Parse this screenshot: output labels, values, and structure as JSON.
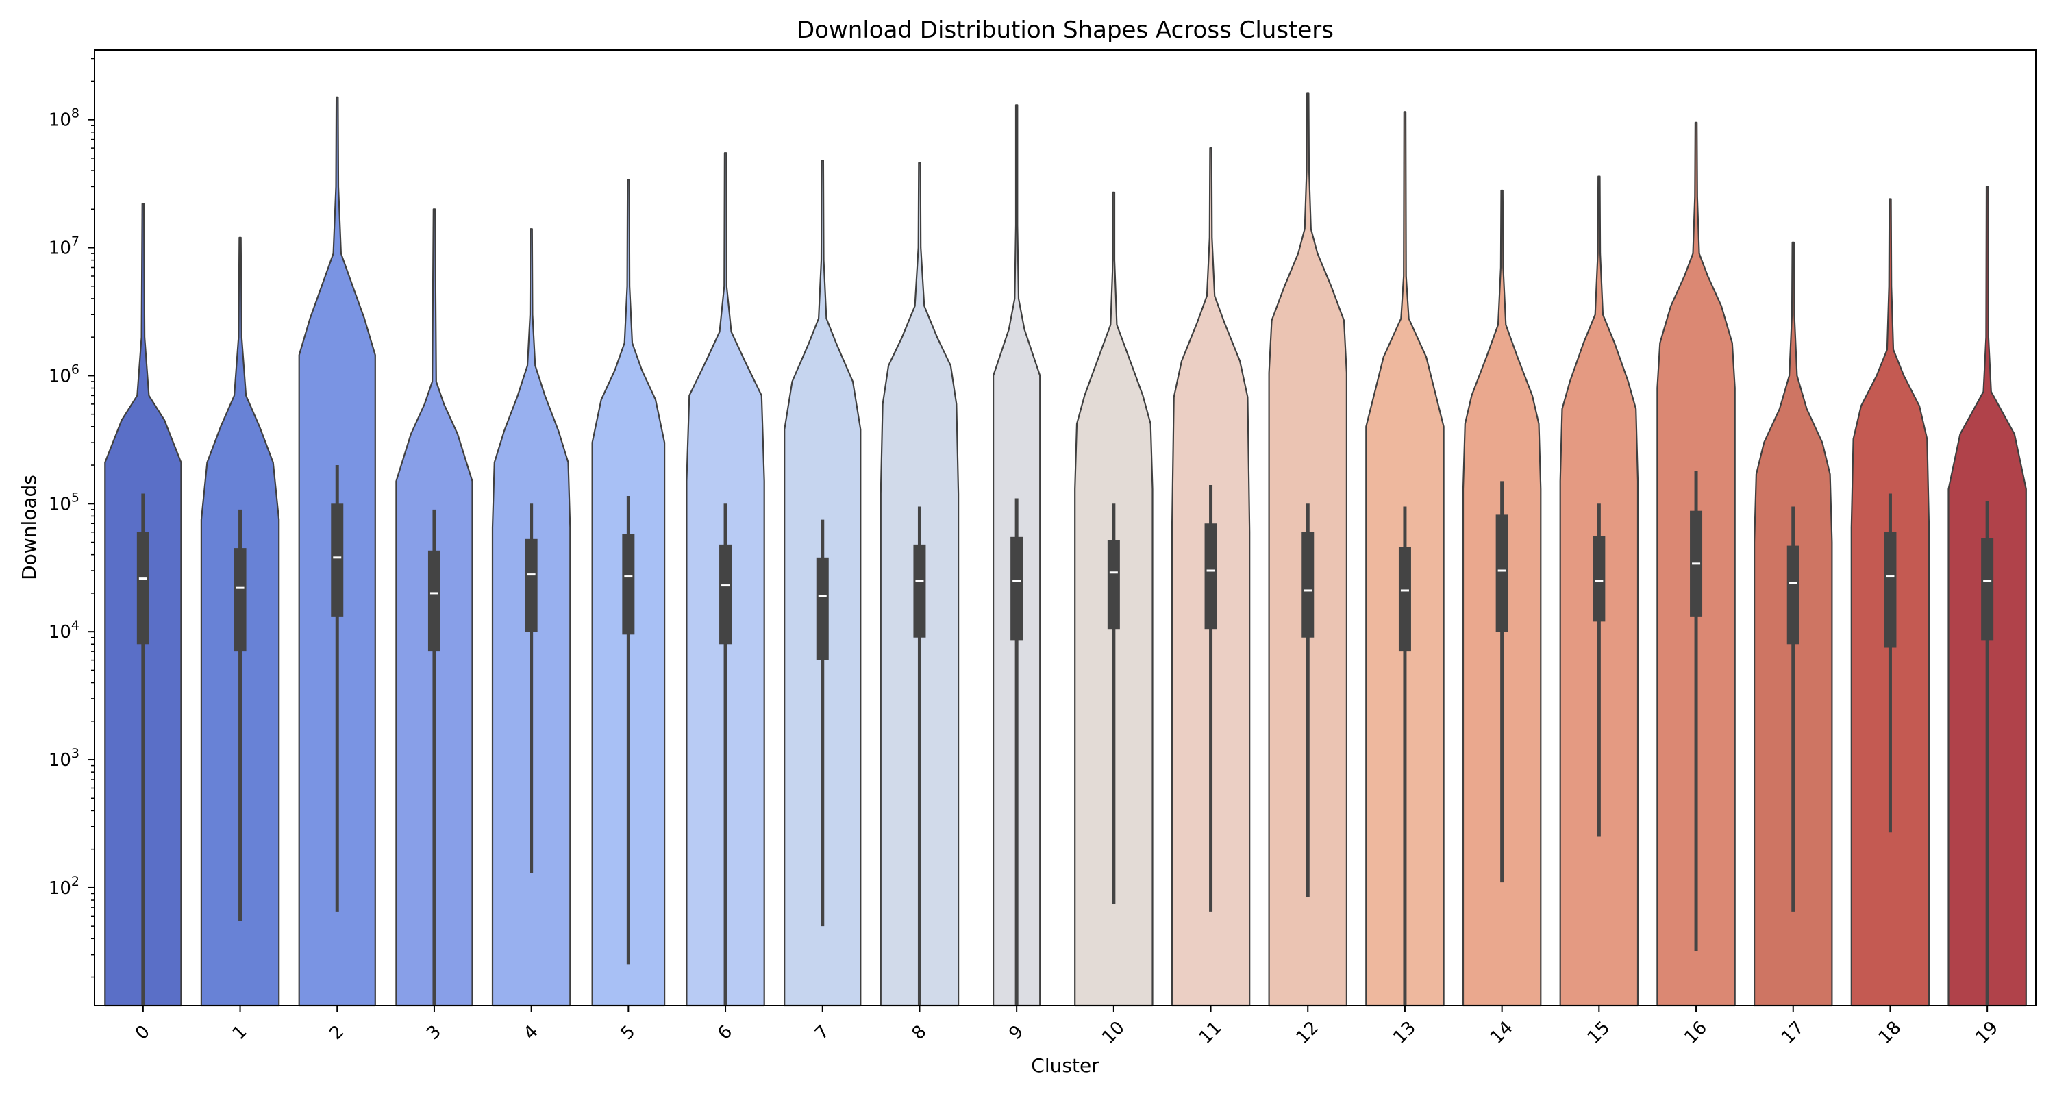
{
  "chart_data": {
    "type": "violin",
    "title": "Download Distribution Shapes Across Clusters",
    "xlabel": "Cluster",
    "ylabel": "Downloads",
    "yscale": "log",
    "ylim": [
      12,
      350000000
    ],
    "yticks": [
      {
        "value": 100,
        "base": "10",
        "exp": "2"
      },
      {
        "value": 1000,
        "base": "10",
        "exp": "3"
      },
      {
        "value": 10000,
        "base": "10",
        "exp": "4"
      },
      {
        "value": 100000,
        "base": "10",
        "exp": "5"
      },
      {
        "value": 1000000,
        "base": "10",
        "exp": "6"
      },
      {
        "value": 10000000,
        "base": "10",
        "exp": "7"
      },
      {
        "value": 100000000,
        "base": "10",
        "exp": "8"
      }
    ],
    "grid": false,
    "categories": [
      "0",
      "1",
      "2",
      "3",
      "4",
      "5",
      "6",
      "7",
      "8",
      "9",
      "10",
      "11",
      "12",
      "13",
      "14",
      "15",
      "16",
      "17",
      "18",
      "19"
    ],
    "colors": [
      "#5a6fc7",
      "#6882d6",
      "#7a94e3",
      "#889fe8",
      "#98b0ef",
      "#a8c0f5",
      "#b8cbf4",
      "#c6d5ef",
      "#d1daea",
      "#dcdde3",
      "#e3dbd6",
      "#ebcfc4",
      "#ebc4b3",
      "#eeb89e",
      "#eaa88e",
      "#e49a82",
      "#db8873",
      "#ce7563",
      "#c45a52",
      "#b0424a"
    ],
    "box": [
      {
        "cluster": "0",
        "whisker_low": 12,
        "q1": 8000,
        "median": 26000,
        "q3": 60000,
        "whisker_high": 120000,
        "max": 22000000
      },
      {
        "cluster": "1",
        "whisker_low": 55,
        "q1": 7000,
        "median": 22000,
        "q3": 45000,
        "whisker_high": 90000,
        "max": 12000000
      },
      {
        "cluster": "2",
        "whisker_low": 65,
        "q1": 13000,
        "median": 38000,
        "q3": 100000,
        "whisker_high": 200000,
        "max": 150000000
      },
      {
        "cluster": "3",
        "whisker_low": 12,
        "q1": 7000,
        "median": 20000,
        "q3": 43000,
        "whisker_high": 90000,
        "max": 20000000
      },
      {
        "cluster": "4",
        "whisker_low": 130,
        "q1": 10000,
        "median": 28000,
        "q3": 53000,
        "whisker_high": 100000,
        "max": 14000000
      },
      {
        "cluster": "5",
        "whisker_low": 25,
        "q1": 9500,
        "median": 27000,
        "q3": 58000,
        "whisker_high": 115000,
        "max": 34000000
      },
      {
        "cluster": "6",
        "whisker_low": 12,
        "q1": 8000,
        "median": 23000,
        "q3": 48000,
        "whisker_high": 100000,
        "max": 55000000
      },
      {
        "cluster": "7",
        "whisker_low": 50,
        "q1": 6000,
        "median": 19000,
        "q3": 38000,
        "whisker_high": 75000,
        "max": 48000000
      },
      {
        "cluster": "8",
        "whisker_low": 12,
        "q1": 9000,
        "median": 25000,
        "q3": 48000,
        "whisker_high": 95000,
        "max": 46000000
      },
      {
        "cluster": "9",
        "whisker_low": 12,
        "q1": 8500,
        "median": 25000,
        "q3": 55000,
        "whisker_high": 110000,
        "max": 130000000
      },
      {
        "cluster": "10",
        "whisker_low": 75,
        "q1": 10500,
        "median": 29000,
        "q3": 52000,
        "whisker_high": 100000,
        "max": 27000000
      },
      {
        "cluster": "11",
        "whisker_low": 65,
        "q1": 10500,
        "median": 30000,
        "q3": 70000,
        "whisker_high": 140000,
        "max": 60000000
      },
      {
        "cluster": "12",
        "whisker_low": 85,
        "q1": 9000,
        "median": 21000,
        "q3": 60000,
        "whisker_high": 100000,
        "max": 160000000
      },
      {
        "cluster": "13",
        "whisker_low": 12,
        "q1": 7000,
        "median": 21000,
        "q3": 46000,
        "whisker_high": 95000,
        "max": 115000000
      },
      {
        "cluster": "14",
        "whisker_low": 110,
        "q1": 10000,
        "median": 30000,
        "q3": 82000,
        "whisker_high": 150000,
        "max": 28000000
      },
      {
        "cluster": "15",
        "whisker_low": 250,
        "q1": 12000,
        "median": 25000,
        "q3": 56000,
        "whisker_high": 100000,
        "max": 36000000
      },
      {
        "cluster": "16",
        "whisker_low": 32,
        "q1": 13000,
        "median": 34000,
        "q3": 88000,
        "whisker_high": 180000,
        "max": 95000000
      },
      {
        "cluster": "17",
        "whisker_low": 65,
        "q1": 8000,
        "median": 24000,
        "q3": 47000,
        "whisker_high": 95000,
        "max": 11000000
      },
      {
        "cluster": "18",
        "whisker_low": 270,
        "q1": 7500,
        "median": 27000,
        "q3": 60000,
        "whisker_high": 120000,
        "max": 24000000
      },
      {
        "cluster": "19",
        "whisker_low": 12,
        "q1": 8500,
        "median": 25000,
        "q3": 54000,
        "whisker_high": 105000,
        "max": 30000000
      }
    ],
    "violin_profiles": [
      {
        "cluster": "0",
        "points": [
          [
            12,
            0.98
          ],
          [
            210000,
            0.98
          ],
          [
            450000,
            0.55
          ],
          [
            700000,
            0.15
          ],
          [
            2000000,
            0.04
          ],
          [
            22000000,
            0.02
          ]
        ]
      },
      {
        "cluster": "1",
        "points": [
          [
            12,
            1.0
          ],
          [
            75000,
            1.0
          ],
          [
            210000,
            0.85
          ],
          [
            400000,
            0.5
          ],
          [
            700000,
            0.15
          ],
          [
            2000000,
            0.04
          ],
          [
            12000000,
            0.02
          ]
        ]
      },
      {
        "cluster": "2",
        "points": [
          [
            12,
            0.98
          ],
          [
            1450000,
            0.98
          ],
          [
            2800000,
            0.7
          ],
          [
            5000000,
            0.4
          ],
          [
            9000000,
            0.1
          ],
          [
            30000000,
            0.03
          ],
          [
            150000000,
            0.02
          ]
        ]
      },
      {
        "cluster": "3",
        "points": [
          [
            12,
            0.98
          ],
          [
            150000,
            0.98
          ],
          [
            350000,
            0.6
          ],
          [
            600000,
            0.25
          ],
          [
            900000,
            0.05
          ],
          [
            20000000,
            0.02
          ]
        ]
      },
      {
        "cluster": "4",
        "points": [
          [
            12,
            1.0
          ],
          [
            65000,
            1.0
          ],
          [
            210000,
            0.95
          ],
          [
            370000,
            0.7
          ],
          [
            700000,
            0.35
          ],
          [
            1200000,
            0.1
          ],
          [
            3000000,
            0.03
          ],
          [
            14000000,
            0.02
          ]
        ]
      },
      {
        "cluster": "5",
        "points": [
          [
            12,
            0.93
          ],
          [
            300000,
            0.93
          ],
          [
            650000,
            0.7
          ],
          [
            1100000,
            0.35
          ],
          [
            1800000,
            0.1
          ],
          [
            5000000,
            0.03
          ],
          [
            34000000,
            0.02
          ]
        ]
      },
      {
        "cluster": "6",
        "points": [
          [
            12,
            1.0
          ],
          [
            150000,
            1.0
          ],
          [
            700000,
            0.93
          ],
          [
            1300000,
            0.5
          ],
          [
            2200000,
            0.15
          ],
          [
            5000000,
            0.03
          ],
          [
            55000000,
            0.02
          ]
        ]
      },
      {
        "cluster": "7",
        "points": [
          [
            12,
            0.98
          ],
          [
            380000,
            0.98
          ],
          [
            900000,
            0.78
          ],
          [
            1800000,
            0.35
          ],
          [
            2800000,
            0.1
          ],
          [
            8000000,
            0.03
          ],
          [
            48000000,
            0.02
          ]
        ]
      },
      {
        "cluster": "8",
        "points": [
          [
            12,
            1.0
          ],
          [
            120000,
            1.0
          ],
          [
            600000,
            0.95
          ],
          [
            1200000,
            0.8
          ],
          [
            2000000,
            0.45
          ],
          [
            3500000,
            0.12
          ],
          [
            10000000,
            0.03
          ],
          [
            46000000,
            0.02
          ]
        ]
      },
      {
        "cluster": "9",
        "points": [
          [
            12,
            0.6
          ],
          [
            1000000,
            0.6
          ],
          [
            2300000,
            0.2
          ],
          [
            4000000,
            0.05
          ],
          [
            15000000,
            0.02
          ],
          [
            130000000,
            0.02
          ]
        ]
      },
      {
        "cluster": "10",
        "points": [
          [
            12,
            1.0
          ],
          [
            130000,
            1.0
          ],
          [
            420000,
            0.95
          ],
          [
            700000,
            0.75
          ],
          [
            1500000,
            0.35
          ],
          [
            2500000,
            0.08
          ],
          [
            8000000,
            0.02
          ],
          [
            27000000,
            0.02
          ]
        ]
      },
      {
        "cluster": "11",
        "points": [
          [
            12,
            1.0
          ],
          [
            60000,
            1.0
          ],
          [
            680000,
            0.95
          ],
          [
            1300000,
            0.75
          ],
          [
            2600000,
            0.35
          ],
          [
            4200000,
            0.1
          ],
          [
            12000000,
            0.03
          ],
          [
            60000000,
            0.02
          ]
        ]
      },
      {
        "cluster": "12",
        "points": [
          [
            12,
            1.0
          ],
          [
            1050000,
            1.0
          ],
          [
            2700000,
            0.93
          ],
          [
            5000000,
            0.6
          ],
          [
            9000000,
            0.25
          ],
          [
            14000000,
            0.08
          ],
          [
            40000000,
            0.03
          ],
          [
            160000000,
            0.02
          ]
        ]
      },
      {
        "cluster": "13",
        "points": [
          [
            12,
            1.0
          ],
          [
            400000,
            1.0
          ],
          [
            1400000,
            0.55
          ],
          [
            2800000,
            0.1
          ],
          [
            6000000,
            0.03
          ],
          [
            115000000,
            0.02
          ]
        ]
      },
      {
        "cluster": "14",
        "points": [
          [
            12,
            1.0
          ],
          [
            130000,
            1.0
          ],
          [
            420000,
            0.95
          ],
          [
            700000,
            0.78
          ],
          [
            1400000,
            0.4
          ],
          [
            2500000,
            0.1
          ],
          [
            7000000,
            0.03
          ],
          [
            28000000,
            0.02
          ]
        ]
      },
      {
        "cluster": "15",
        "points": [
          [
            12,
            1.0
          ],
          [
            150000,
            1.0
          ],
          [
            550000,
            0.95
          ],
          [
            900000,
            0.75
          ],
          [
            1800000,
            0.4
          ],
          [
            3000000,
            0.1
          ],
          [
            9000000,
            0.03
          ],
          [
            36000000,
            0.02
          ]
        ]
      },
      {
        "cluster": "16",
        "points": [
          [
            12,
            1.0
          ],
          [
            800000,
            1.0
          ],
          [
            1800000,
            0.93
          ],
          [
            3500000,
            0.65
          ],
          [
            6000000,
            0.3
          ],
          [
            9000000,
            0.08
          ],
          [
            25000000,
            0.03
          ],
          [
            95000000,
            0.02
          ]
        ]
      },
      {
        "cluster": "17",
        "points": [
          [
            12,
            1.0
          ],
          [
            50000,
            1.0
          ],
          [
            170000,
            0.95
          ],
          [
            300000,
            0.75
          ],
          [
            550000,
            0.35
          ],
          [
            1000000,
            0.1
          ],
          [
            3000000,
            0.03
          ],
          [
            11000000,
            0.02
          ]
        ]
      },
      {
        "cluster": "18",
        "points": [
          [
            12,
            1.0
          ],
          [
            65000,
            1.0
          ],
          [
            320000,
            0.95
          ],
          [
            580000,
            0.75
          ],
          [
            1000000,
            0.35
          ],
          [
            1600000,
            0.08
          ],
          [
            5000000,
            0.03
          ],
          [
            24000000,
            0.02
          ]
        ]
      },
      {
        "cluster": "19",
        "points": [
          [
            12,
            1.0
          ],
          [
            130000,
            1.0
          ],
          [
            350000,
            0.7
          ],
          [
            750000,
            0.1
          ],
          [
            2000000,
            0.03
          ],
          [
            30000000,
            0.02
          ]
        ]
      }
    ]
  }
}
